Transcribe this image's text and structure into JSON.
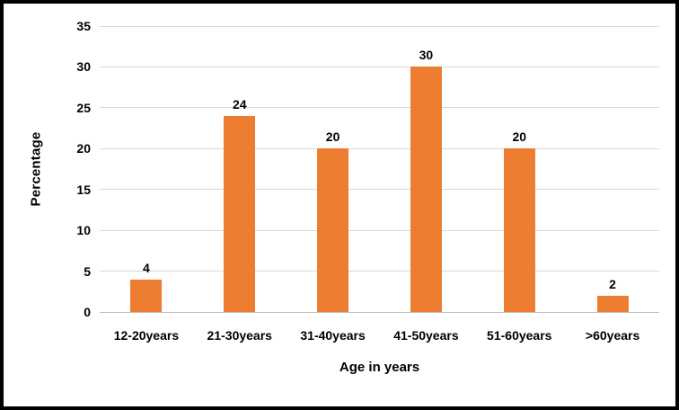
{
  "window": {
    "background": "#ffffff",
    "border_color": "#000000"
  },
  "chart_data": {
    "type": "bar",
    "categories": [
      "12-20years",
      "21-30years",
      "31-40years",
      "41-50years",
      "51-60years",
      ">60years"
    ],
    "values": [
      4,
      24,
      20,
      30,
      20,
      2
    ],
    "data_labels": [
      "4",
      "24",
      "20",
      "30",
      "20",
      "2"
    ],
    "title": "",
    "xlabel": "Age in years",
    "ylabel": "Percentage",
    "ylim": [
      0,
      35
    ],
    "yticks": [
      0,
      5,
      10,
      15,
      20,
      25,
      30,
      35
    ],
    "grid": "horizontal",
    "legend": "none",
    "bar_color": "#ED7D31",
    "gridline_color": "#D9D9D9",
    "axis_line_color": "#BFBFBF",
    "text_color": "#000000"
  }
}
